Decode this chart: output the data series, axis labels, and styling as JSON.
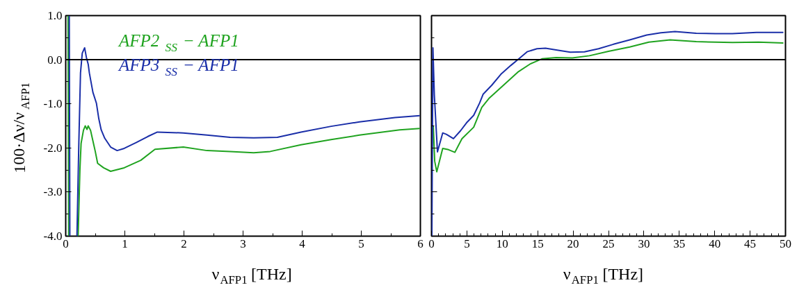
{
  "chart_data": [
    {
      "type": "line",
      "xlabel": "ν$_{AFP1}$ [THz]",
      "ylabel": "100·Δν/ν$_{AFP1}$",
      "xlim": [
        0,
        6
      ],
      "ylim": [
        -4.0,
        1.0
      ],
      "xticks": [
        0,
        1,
        2,
        3,
        4,
        5,
        6
      ],
      "yticks": [
        {
          "value": 1.0,
          "label": "1.0"
        },
        {
          "value": 0.0,
          "label": "0.0"
        },
        {
          "value": -1.0,
          "label": "-1.0"
        },
        {
          "value": -2.0,
          "label": "-2.0"
        },
        {
          "value": -3.0,
          "label": "-3.0"
        },
        {
          "value": -4.0,
          "label": "-4.0"
        }
      ],
      "ref_lines": [
        {
          "axis": "y",
          "value": 0,
          "color": "#000000"
        }
      ],
      "series": [
        {
          "name": "AFP2$_{SS}$ − AFP1",
          "color": "#1fa31f",
          "x": [
            0.04,
            0.05,
            null,
            0.21,
            0.24,
            0.26,
            0.3,
            0.33,
            0.36,
            0.38,
            0.42,
            0.47,
            0.5,
            0.54,
            0.64,
            0.76,
            0.99,
            1.27,
            1.51,
            1.99,
            2.39,
            2.78,
            3.18,
            3.46,
            3.98,
            4.49,
            4.97,
            5.65,
            5.99
          ],
          "values": [
            1.0,
            -4.0,
            null,
            -4.0,
            -2.5,
            -1.9,
            -1.6,
            -1.5,
            -1.58,
            -1.5,
            -1.6,
            -1.9,
            -2.08,
            -2.35,
            -2.45,
            -2.53,
            -2.45,
            -2.28,
            -2.03,
            -1.98,
            -2.06,
            -2.08,
            -2.11,
            -2.08,
            -1.93,
            -1.81,
            -1.71,
            -1.59,
            -1.56
          ]
        },
        {
          "name": "AFP3$_{SS}$ − AFP1",
          "color": "#1a2ea8",
          "x": [
            0.06,
            0.07,
            null,
            0.19,
            0.22,
            0.25,
            0.28,
            0.32,
            0.35,
            0.38,
            0.4,
            0.46,
            0.52,
            0.56,
            0.6,
            0.66,
            0.76,
            0.87,
            0.99,
            1.19,
            1.39,
            1.55,
            1.99,
            2.39,
            2.78,
            3.18,
            3.58,
            3.98,
            4.49,
            4.97,
            5.57,
            5.99
          ],
          "values": [
            1.0,
            -4.0,
            null,
            -4.0,
            -2.0,
            -0.3,
            0.15,
            0.27,
            0.05,
            -0.1,
            -0.3,
            -0.74,
            -0.99,
            -1.34,
            -1.59,
            -1.78,
            -1.98,
            -2.06,
            -2.01,
            -1.88,
            -1.74,
            -1.64,
            -1.66,
            -1.71,
            -1.76,
            -1.77,
            -1.76,
            -1.64,
            -1.51,
            -1.41,
            -1.31,
            -1.27
          ]
        }
      ]
    },
    {
      "type": "line",
      "xlabel": "ν$_{AFP1}$ [THz]",
      "xlim": [
        0,
        50
      ],
      "ylim": [
        -4.0,
        1.0
      ],
      "tick_labels": "x",
      "xticks": [
        0,
        5,
        10,
        15,
        20,
        25,
        30,
        35,
        40,
        45,
        50
      ],
      "yticks": [
        {
          "value": 1.0,
          "label": null
        },
        {
          "value": 0.0,
          "label": null
        },
        {
          "value": -1.0,
          "label": null
        },
        {
          "value": -2.0,
          "label": null
        },
        {
          "value": -3.0,
          "label": null
        },
        {
          "value": -4.0,
          "label": null
        }
      ],
      "ref_lines": [
        {
          "axis": "y",
          "value": 0,
          "color": "#000000"
        }
      ],
      "series": [
        {
          "color": "#1fa31f",
          "x": [
            0.25,
            0.45,
            0.74,
            1.58,
            2.4,
            3.3,
            4.3,
            5.96,
            7.1,
            8.1,
            9.8,
            12.2,
            13.9,
            15.6,
            17.6,
            19.9,
            22.3,
            25.0,
            28.0,
            30.7,
            33.7,
            37.4,
            42.5,
            46.2,
            49.7
          ],
          "values": [
            -1.5,
            -2.3,
            -2.54,
            -2.01,
            -2.04,
            -2.1,
            -1.79,
            -1.53,
            -1.08,
            -0.88,
            -0.63,
            -0.28,
            -0.1,
            0.02,
            0.05,
            0.04,
            0.09,
            0.19,
            0.29,
            0.4,
            0.45,
            0.41,
            0.39,
            0.4,
            0.38
          ]
        },
        {
          "color": "#1a2ea8",
          "x": [
            0.05,
            0.2,
            0.4,
            0.84,
            1.58,
            2.09,
            3.1,
            4.1,
            4.95,
            5.96,
            6.8,
            7.3,
            8.5,
            9.8,
            11.2,
            12.4,
            13.5,
            14.9,
            16.1,
            17.6,
            19.6,
            21.6,
            23.6,
            25.7,
            28.0,
            30.4,
            32.4,
            34.4,
            37.4,
            40.1,
            42.5,
            45.9,
            49.7
          ],
          "values": [
            -4.0,
            0.27,
            -0.8,
            -2.09,
            -1.66,
            -1.69,
            -1.79,
            -1.61,
            -1.43,
            -1.26,
            -0.98,
            -0.78,
            -0.58,
            -0.33,
            -0.13,
            0.03,
            0.18,
            0.25,
            0.26,
            0.22,
            0.17,
            0.18,
            0.25,
            0.35,
            0.45,
            0.56,
            0.61,
            0.64,
            0.6,
            0.59,
            0.59,
            0.62,
            0.62
          ]
        }
      ]
    }
  ]
}
